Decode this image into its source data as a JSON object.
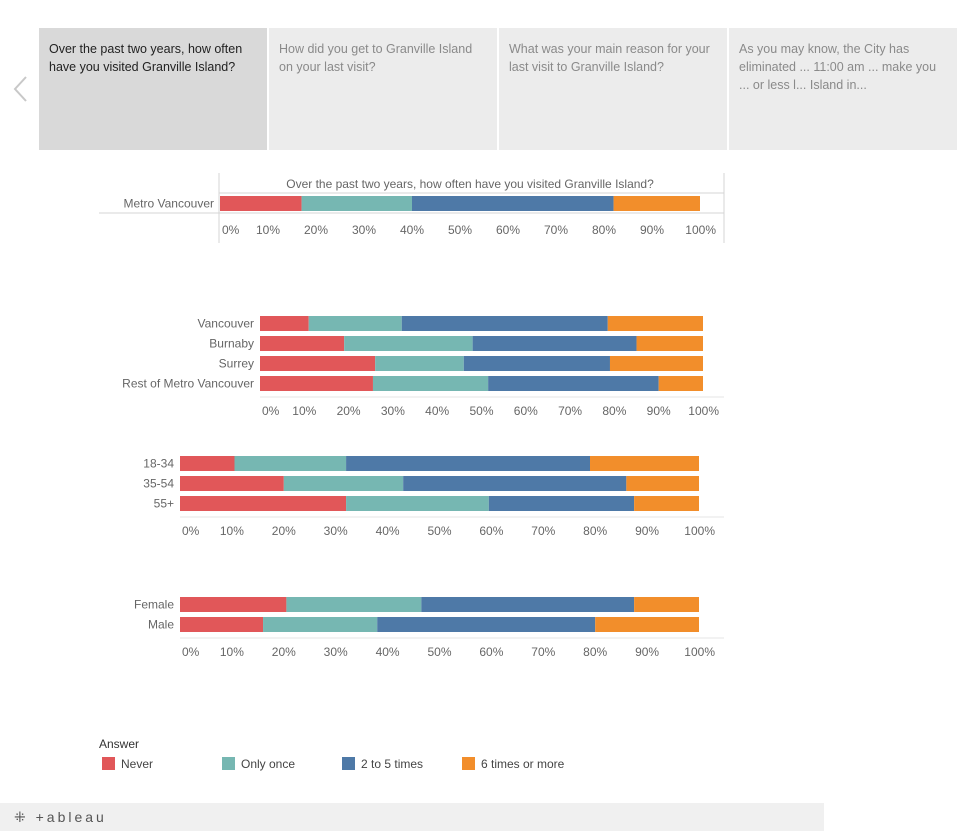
{
  "story_points": [
    {
      "label": "Over the past two years, how often have you visited Granville Island?"
    },
    {
      "label": "How did you get to Granville Island on your last visit?"
    },
    {
      "label": "What was your main reason for your last visit to Granville Island?"
    },
    {
      "label": "As you may know, the City has eliminated ... 11:00 am ... make you ... or less l... Island in..."
    }
  ],
  "active_story_point": 0,
  "legend": {
    "title": "Answer",
    "items": [
      {
        "label": "Never",
        "color": "#e15759"
      },
      {
        "label": "Only once",
        "color": "#76b7b2"
      },
      {
        "label": "2 to 5 times",
        "color": "#4e79a7"
      },
      {
        "label": "6 times or more",
        "color": "#f28e2b"
      }
    ]
  },
  "footer": {
    "logo_text": "+ableau"
  },
  "chart_data": [
    {
      "type": "bar",
      "orientation": "horizontal-stacked-100",
      "title": "Over the past two years, how often have you visited Granville Island?",
      "categories": [
        "Metro Vancouver"
      ],
      "series": [
        {
          "name": "Never",
          "values": [
            17
          ]
        },
        {
          "name": "Only once",
          "values": [
            23
          ]
        },
        {
          "name": "2 to 5 times",
          "values": [
            42
          ]
        },
        {
          "name": "6 times or more",
          "values": [
            18
          ]
        }
      ],
      "xlim": [
        0,
        100
      ],
      "xticks": [
        "0%",
        "10%",
        "20%",
        "30%",
        "40%",
        "50%",
        "60%",
        "70%",
        "80%",
        "90%",
        "100%"
      ]
    },
    {
      "type": "bar",
      "orientation": "horizontal-stacked-100",
      "categories": [
        "Vancouver",
        "Burnaby",
        "Surrey",
        "Rest of Metro Vancouver"
      ],
      "series": [
        {
          "name": "Never",
          "values": [
            11,
            19,
            26,
            25.5
          ]
        },
        {
          "name": "Only once",
          "values": [
            21,
            29,
            20,
            26
          ]
        },
        {
          "name": "2 to 5 times",
          "values": [
            46.5,
            37,
            33,
            38.5
          ]
        },
        {
          "name": "6 times or more",
          "values": [
            21.5,
            15,
            21,
            10
          ]
        }
      ],
      "xlim": [
        0,
        100
      ],
      "xticks": [
        "0%",
        "10%",
        "20%",
        "30%",
        "40%",
        "50%",
        "60%",
        "70%",
        "80%",
        "90%",
        "100%"
      ]
    },
    {
      "type": "bar",
      "orientation": "horizontal-stacked-100",
      "categories": [
        "18-34",
        "35-54",
        "55+"
      ],
      "series": [
        {
          "name": "Never",
          "values": [
            10.5,
            20,
            32
          ]
        },
        {
          "name": "Only once",
          "values": [
            21.5,
            23,
            27.5
          ]
        },
        {
          "name": "2 to 5 times",
          "values": [
            47,
            43,
            28
          ]
        },
        {
          "name": "6 times or more",
          "values": [
            21,
            14,
            12.5
          ]
        }
      ],
      "xlim": [
        0,
        100
      ],
      "xticks": [
        "0%",
        "10%",
        "20%",
        "30%",
        "40%",
        "50%",
        "60%",
        "70%",
        "80%",
        "90%",
        "100%"
      ]
    },
    {
      "type": "bar",
      "orientation": "horizontal-stacked-100",
      "categories": [
        "Female",
        "Male"
      ],
      "series": [
        {
          "name": "Never",
          "values": [
            20.5,
            16
          ]
        },
        {
          "name": "Only once",
          "values": [
            26,
            22
          ]
        },
        {
          "name": "2 to 5 times",
          "values": [
            41,
            42
          ]
        },
        {
          "name": "6 times or more",
          "values": [
            12.5,
            20
          ]
        }
      ],
      "xlim": [
        0,
        100
      ],
      "xticks": [
        "0%",
        "10%",
        "20%",
        "30%",
        "40%",
        "50%",
        "60%",
        "70%",
        "80%",
        "90%",
        "100%"
      ]
    }
  ]
}
